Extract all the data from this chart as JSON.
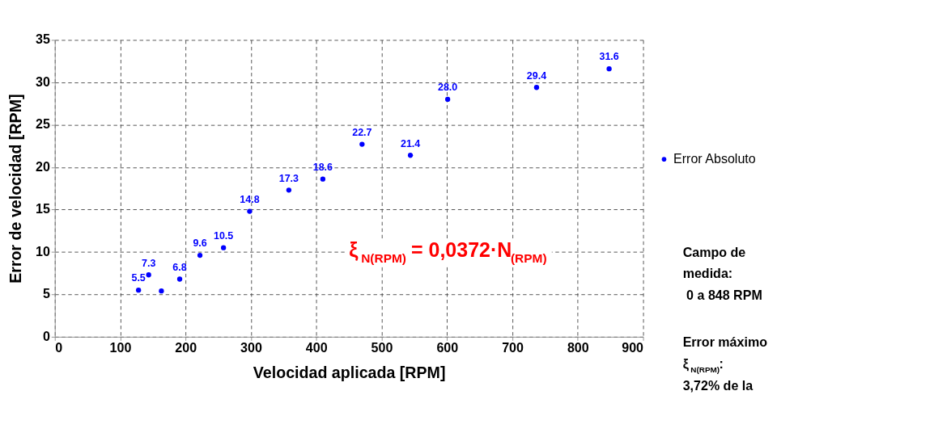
{
  "chart_data": {
    "type": "scatter",
    "xlabel": "Velocidad aplicada [RPM]",
    "ylabel": "Error de velocidad [RPM]",
    "x": [
      128,
      143.5,
      163,
      191,
      222,
      258,
      298,
      358,
      410,
      470,
      544,
      601,
      737,
      848
    ],
    "series": [
      {
        "name": "Error Absoluto",
        "color": "#0000ff",
        "values": [
          5.5,
          7.3,
          5.4,
          6.8,
          9.6,
          10.5,
          14.8,
          17.3,
          18.6,
          22.7,
          21.4,
          28.0,
          29.4,
          31.6
        ],
        "value_labels": [
          "5.5",
          "7.3",
          null,
          "6.8",
          "9.6",
          "10.5",
          "14.8",
          "17.3",
          "18.6",
          "22.7",
          "21.4",
          "28.0",
          "29.4",
          "31.6"
        ]
      }
    ],
    "xlim": [
      0,
      900
    ],
    "xticks": [
      0,
      100,
      200,
      300,
      400,
      500,
      600,
      700,
      800,
      900
    ],
    "ylim": [
      0,
      35
    ],
    "yticks": [
      0,
      5,
      10,
      15,
      20,
      25,
      30,
      35
    ],
    "grid": true,
    "legend": "right",
    "marker": "circle",
    "annotations": [
      "ξ$_{N(RPM)}$ = 0,0372·N$_{(RPM)}$",
      "Campo de\nmedida:\n 0 a 848 RPM",
      "Error máximo\nξ$_{N(RPM)}$:\n3,72% de la"
    ]
  }
}
